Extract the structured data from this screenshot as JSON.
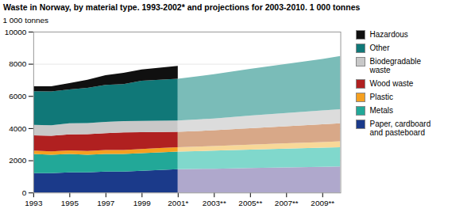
{
  "chart_data": {
    "type": "area",
    "stacked": true,
    "title": "Waste in Norway, by material type. 1993-2002* and projections for 2003-2010. 1 000 tonnes",
    "y_label": "1 000 tonnes",
    "x": [
      1993,
      1994,
      1995,
      1996,
      1997,
      1998,
      1999,
      2000,
      2001
    ],
    "series": [
      {
        "name": "Paper, cardboard\nand pasteboard",
        "color": "#1b3a8a",
        "values": [
          1200,
          1200,
          1250,
          1250,
          1300,
          1300,
          1350,
          1400,
          1450
        ]
      },
      {
        "name": "Metals",
        "color": "#22a898",
        "values": [
          1200,
          1150,
          1150,
          1100,
          1100,
          1100,
          1100,
          1100,
          1100
        ]
      },
      {
        "name": "Plastic",
        "color": "#f5a020",
        "values": [
          200,
          210,
          220,
          230,
          240,
          240,
          250,
          260,
          270
        ]
      },
      {
        "name": "Wood waste",
        "color": "#b02020",
        "values": [
          950,
          970,
          1000,
          1050,
          1050,
          1100,
          1050,
          1000,
          950
        ]
      },
      {
        "name": "Biodegradable\nwaste",
        "color": "#c8c8c8",
        "values": [
          650,
          650,
          680,
          680,
          700,
          700,
          700,
          700,
          700
        ]
      },
      {
        "name": "Other",
        "color": "#107878",
        "values": [
          2100,
          2100,
          2100,
          2200,
          2300,
          2300,
          2500,
          2550,
          2600
        ]
      },
      {
        "name": "Hazardous",
        "color": "#101010",
        "values": [
          300,
          320,
          400,
          500,
          600,
          700,
          700,
          750,
          800
        ]
      }
    ],
    "projection": {
      "x": [
        2001,
        2003,
        2005,
        2007,
        2009,
        2010
      ],
      "series": [
        {
          "color": "#afa8cc",
          "values": [
            1450,
            1480,
            1520,
            1560,
            1600,
            1620
          ]
        },
        {
          "color": "#80d8cc",
          "values": [
            1100,
            1120,
            1150,
            1170,
            1190,
            1200
          ]
        },
        {
          "color": "#f8d898",
          "values": [
            270,
            290,
            310,
            330,
            350,
            360
          ]
        },
        {
          "color": "#d8a888",
          "values": [
            950,
            980,
            1020,
            1060,
            1100,
            1120
          ]
        },
        {
          "color": "#dcdcdc",
          "values": [
            700,
            730,
            780,
            820,
            860,
            880
          ]
        },
        {
          "color": "#7abcb8",
          "values": [
            2600,
            2750,
            2900,
            3050,
            3200,
            3300
          ]
        },
        {
          "color": "#bbbbbb",
          "values": [
            0,
            0,
            0,
            0,
            0,
            0
          ]
        }
      ]
    },
    "xlim": [
      1993,
      2010
    ],
    "xticks": [
      1993,
      1995,
      1997,
      1999,
      {
        "value": 2001,
        "label": "2001*"
      },
      {
        "value": 2003,
        "label": "2003**"
      },
      {
        "value": 2005,
        "label": "2005**"
      },
      {
        "value": 2007,
        "label": "2007**"
      },
      {
        "value": 2009,
        "label": "2009**"
      }
    ],
    "ylim": [
      0,
      10000
    ],
    "yticks": [
      0,
      2000,
      4000,
      6000,
      8000,
      10000
    ],
    "grid": true,
    "legend": "right"
  }
}
